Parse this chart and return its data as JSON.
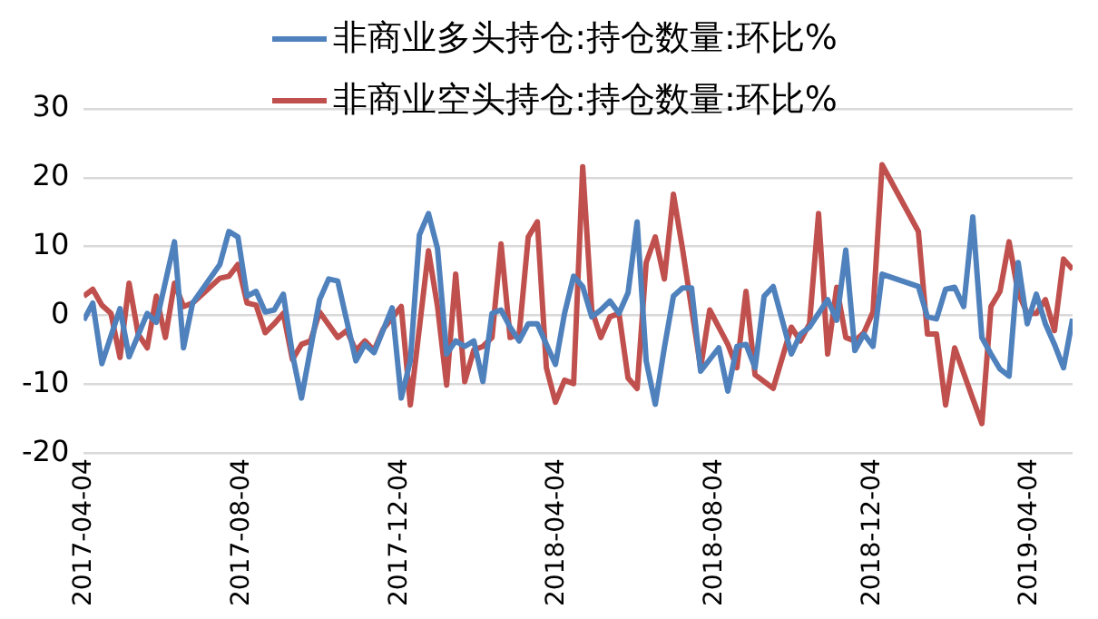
{
  "chart_data": {
    "type": "line",
    "legend": "top",
    "grid": "y",
    "marker": "none",
    "line_style": "solid",
    "xlim": [
      "2017-04-04",
      "2019-05-07"
    ],
    "xticks": [
      "2017-04-04",
      "2017-08-04",
      "2017-12-04",
      "2018-04-04",
      "2018-08-04",
      "2018-12-04",
      "2019-04-04"
    ],
    "ylim": [
      -20,
      30
    ],
    "yticks": [
      -20,
      -10,
      0,
      10,
      20,
      30
    ],
    "series": [
      {
        "name": "非商业多头持仓:持仓数量:环比%",
        "color": "#4f81bd",
        "x": [
          "2017-04-04",
          "2017-04-11",
          "2017-04-18",
          "2017-05-02",
          "2017-05-09",
          "2017-05-23",
          "2017-05-30",
          "2017-06-13",
          "2017-06-20",
          "2017-06-27",
          "2017-07-18",
          "2017-07-25",
          "2017-08-01",
          "2017-08-08",
          "2017-08-15",
          "2017-08-22",
          "2017-08-29",
          "2017-09-05",
          "2017-09-12",
          "2017-09-19",
          "2017-10-03",
          "2017-10-10",
          "2017-10-17",
          "2017-10-31",
          "2017-11-07",
          "2017-11-14",
          "2017-11-28",
          "2017-12-05",
          "2017-12-12",
          "2017-12-19",
          "2017-12-26",
          "2018-01-02",
          "2018-01-09",
          "2018-01-16",
          "2018-01-23",
          "2018-01-30",
          "2018-02-06",
          "2018-02-13",
          "2018-02-20",
          "2018-02-27",
          "2018-03-06",
          "2018-03-13",
          "2018-03-20",
          "2018-03-27",
          "2018-04-03",
          "2018-04-10",
          "2018-04-17",
          "2018-04-24",
          "2018-05-01",
          "2018-05-08",
          "2018-05-15",
          "2018-05-22",
          "2018-05-29",
          "2018-06-05",
          "2018-06-12",
          "2018-06-19",
          "2018-06-26",
          "2018-07-03",
          "2018-07-10",
          "2018-07-17",
          "2018-07-24",
          "2018-08-07",
          "2018-08-14",
          "2018-08-21",
          "2018-08-28",
          "2018-09-04",
          "2018-09-11",
          "2018-09-18",
          "2018-10-02",
          "2018-10-09",
          "2018-10-16",
          "2018-10-30",
          "2018-11-06",
          "2018-11-13",
          "2018-11-20",
          "2018-11-27",
          "2018-12-04",
          "2018-12-11",
          "2019-01-08",
          "2019-01-15",
          "2019-01-22",
          "2019-01-29",
          "2019-02-05",
          "2019-02-12",
          "2019-02-19",
          "2019-02-26",
          "2019-03-05",
          "2019-03-12",
          "2019-03-19",
          "2019-03-26",
          "2019-04-02",
          "2019-04-09",
          "2019-04-16",
          "2019-04-23",
          "2019-04-30",
          "2019-05-07"
        ],
        "values": [
          -0.7,
          1.8,
          -7,
          1,
          -6,
          0.3,
          -1,
          10.7,
          -4.7,
          1.8,
          7.4,
          12.2,
          11.4,
          2.8,
          3.5,
          0.5,
          0.8,
          3.1,
          -5.6,
          -12,
          2.3,
          5.3,
          5,
          -6.6,
          -4.2,
          -5.4,
          1.1,
          -12,
          -6.6,
          11.7,
          14.8,
          9.7,
          -5.6,
          -3.7,
          -4.5,
          -3.7,
          -9.6,
          0.3,
          0.8,
          -1.7,
          -3.7,
          -1.2,
          -1.2,
          -4.2,
          -7.1,
          0.3,
          5.7,
          4.2,
          -0.2,
          0.8,
          2.1,
          0.3,
          3.3,
          13.6,
          -6.6,
          -12.9,
          -4.7,
          2.8,
          4,
          4,
          -8.1,
          -4.7,
          -11,
          -4.5,
          -4.2,
          -7.6,
          2.8,
          4.2,
          -5.6,
          -2.7,
          -1.7,
          2.3,
          -0.7,
          9.5,
          -5.1,
          -2.7,
          -4.5,
          6,
          4.2,
          -0.2,
          -0.5,
          3.8,
          4.1,
          1.3,
          14.3,
          -3.2,
          -5.6,
          -7.8,
          -8.8,
          7.7,
          -1.2,
          3.1,
          -1.2,
          -4.2,
          -7.6,
          -0.5
        ]
      },
      {
        "name": "非商业空头持仓:持仓数量:环比%",
        "color": "#c0504d",
        "x": [
          "2017-04-04",
          "2017-04-11",
          "2017-04-18",
          "2017-04-25",
          "2017-05-02",
          "2017-05-09",
          "2017-05-16",
          "2017-05-23",
          "2017-05-30",
          "2017-06-06",
          "2017-06-13",
          "2017-06-20",
          "2017-06-27",
          "2017-07-18",
          "2017-07-25",
          "2017-08-01",
          "2017-08-08",
          "2017-08-15",
          "2017-08-22",
          "2017-08-29",
          "2017-09-05",
          "2017-09-12",
          "2017-09-19",
          "2017-09-26",
          "2017-10-03",
          "2017-10-17",
          "2017-10-24",
          "2017-10-31",
          "2017-11-07",
          "2017-11-14",
          "2017-11-21",
          "2017-12-05",
          "2017-12-12",
          "2017-12-26",
          "2018-01-02",
          "2018-01-09",
          "2018-01-16",
          "2018-01-23",
          "2018-01-30",
          "2018-02-06",
          "2018-02-13",
          "2018-02-20",
          "2018-02-27",
          "2018-03-06",
          "2018-03-13",
          "2018-03-20",
          "2018-03-27",
          "2018-04-03",
          "2018-04-10",
          "2018-04-17",
          "2018-04-24",
          "2018-05-01",
          "2018-05-08",
          "2018-05-15",
          "2018-05-22",
          "2018-05-29",
          "2018-06-05",
          "2018-06-12",
          "2018-06-19",
          "2018-06-26",
          "2018-07-03",
          "2018-07-10",
          "2018-07-24",
          "2018-07-31",
          "2018-08-14",
          "2018-08-21",
          "2018-08-28",
          "2018-09-04",
          "2018-09-18",
          "2018-10-02",
          "2018-10-09",
          "2018-10-16",
          "2018-10-23",
          "2018-10-30",
          "2018-11-06",
          "2018-11-13",
          "2018-11-20",
          "2018-11-27",
          "2018-12-04",
          "2018-12-11",
          "2019-01-08",
          "2019-01-15",
          "2019-01-22",
          "2019-01-29",
          "2019-02-05",
          "2019-02-19",
          "2019-02-26",
          "2019-03-05",
          "2019-03-12",
          "2019-03-19",
          "2019-03-26",
          "2019-04-02",
          "2019-04-09",
          "2019-04-16",
          "2019-04-23",
          "2019-04-30",
          "2019-05-07"
        ],
        "values": [
          2.8,
          3.8,
          1.5,
          0.3,
          -6.1,
          4.7,
          -2.7,
          -4.7,
          2.8,
          -3.2,
          4.7,
          1.3,
          1.8,
          5.4,
          5.7,
          7.4,
          1.8,
          1.5,
          -2.5,
          -1.2,
          0.3,
          -6.4,
          -4.2,
          -3.7,
          0.5,
          -3.2,
          -2.2,
          -5.1,
          -3.7,
          -5.1,
          -2,
          1.3,
          -13,
          9.4,
          1.3,
          -10.1,
          6,
          -9.6,
          -5,
          -4.5,
          -3.2,
          10.4,
          -3.2,
          -2.7,
          11.4,
          13.6,
          -7.6,
          -12.6,
          -9.4,
          -9.9,
          21.6,
          0.8,
          -3.2,
          -0.2,
          0.3,
          -9.1,
          -10.6,
          7.7,
          11.4,
          5.3,
          17.6,
          9.7,
          -7.6,
          0.8,
          -4.2,
          -7.6,
          3.5,
          -8.6,
          -10.6,
          -1.7,
          -3.7,
          -1.2,
          14.8,
          -5.6,
          4.1,
          -3.2,
          -3.7,
          -2.5,
          0.5,
          21.9,
          12.2,
          -2.7,
          -2.7,
          -13,
          -4.7,
          -12.1,
          -15.7,
          1.3,
          3.5,
          10.7,
          3.3,
          0.3,
          0.3,
          2.3,
          -2.2,
          8.2,
          6.7
        ]
      }
    ]
  }
}
